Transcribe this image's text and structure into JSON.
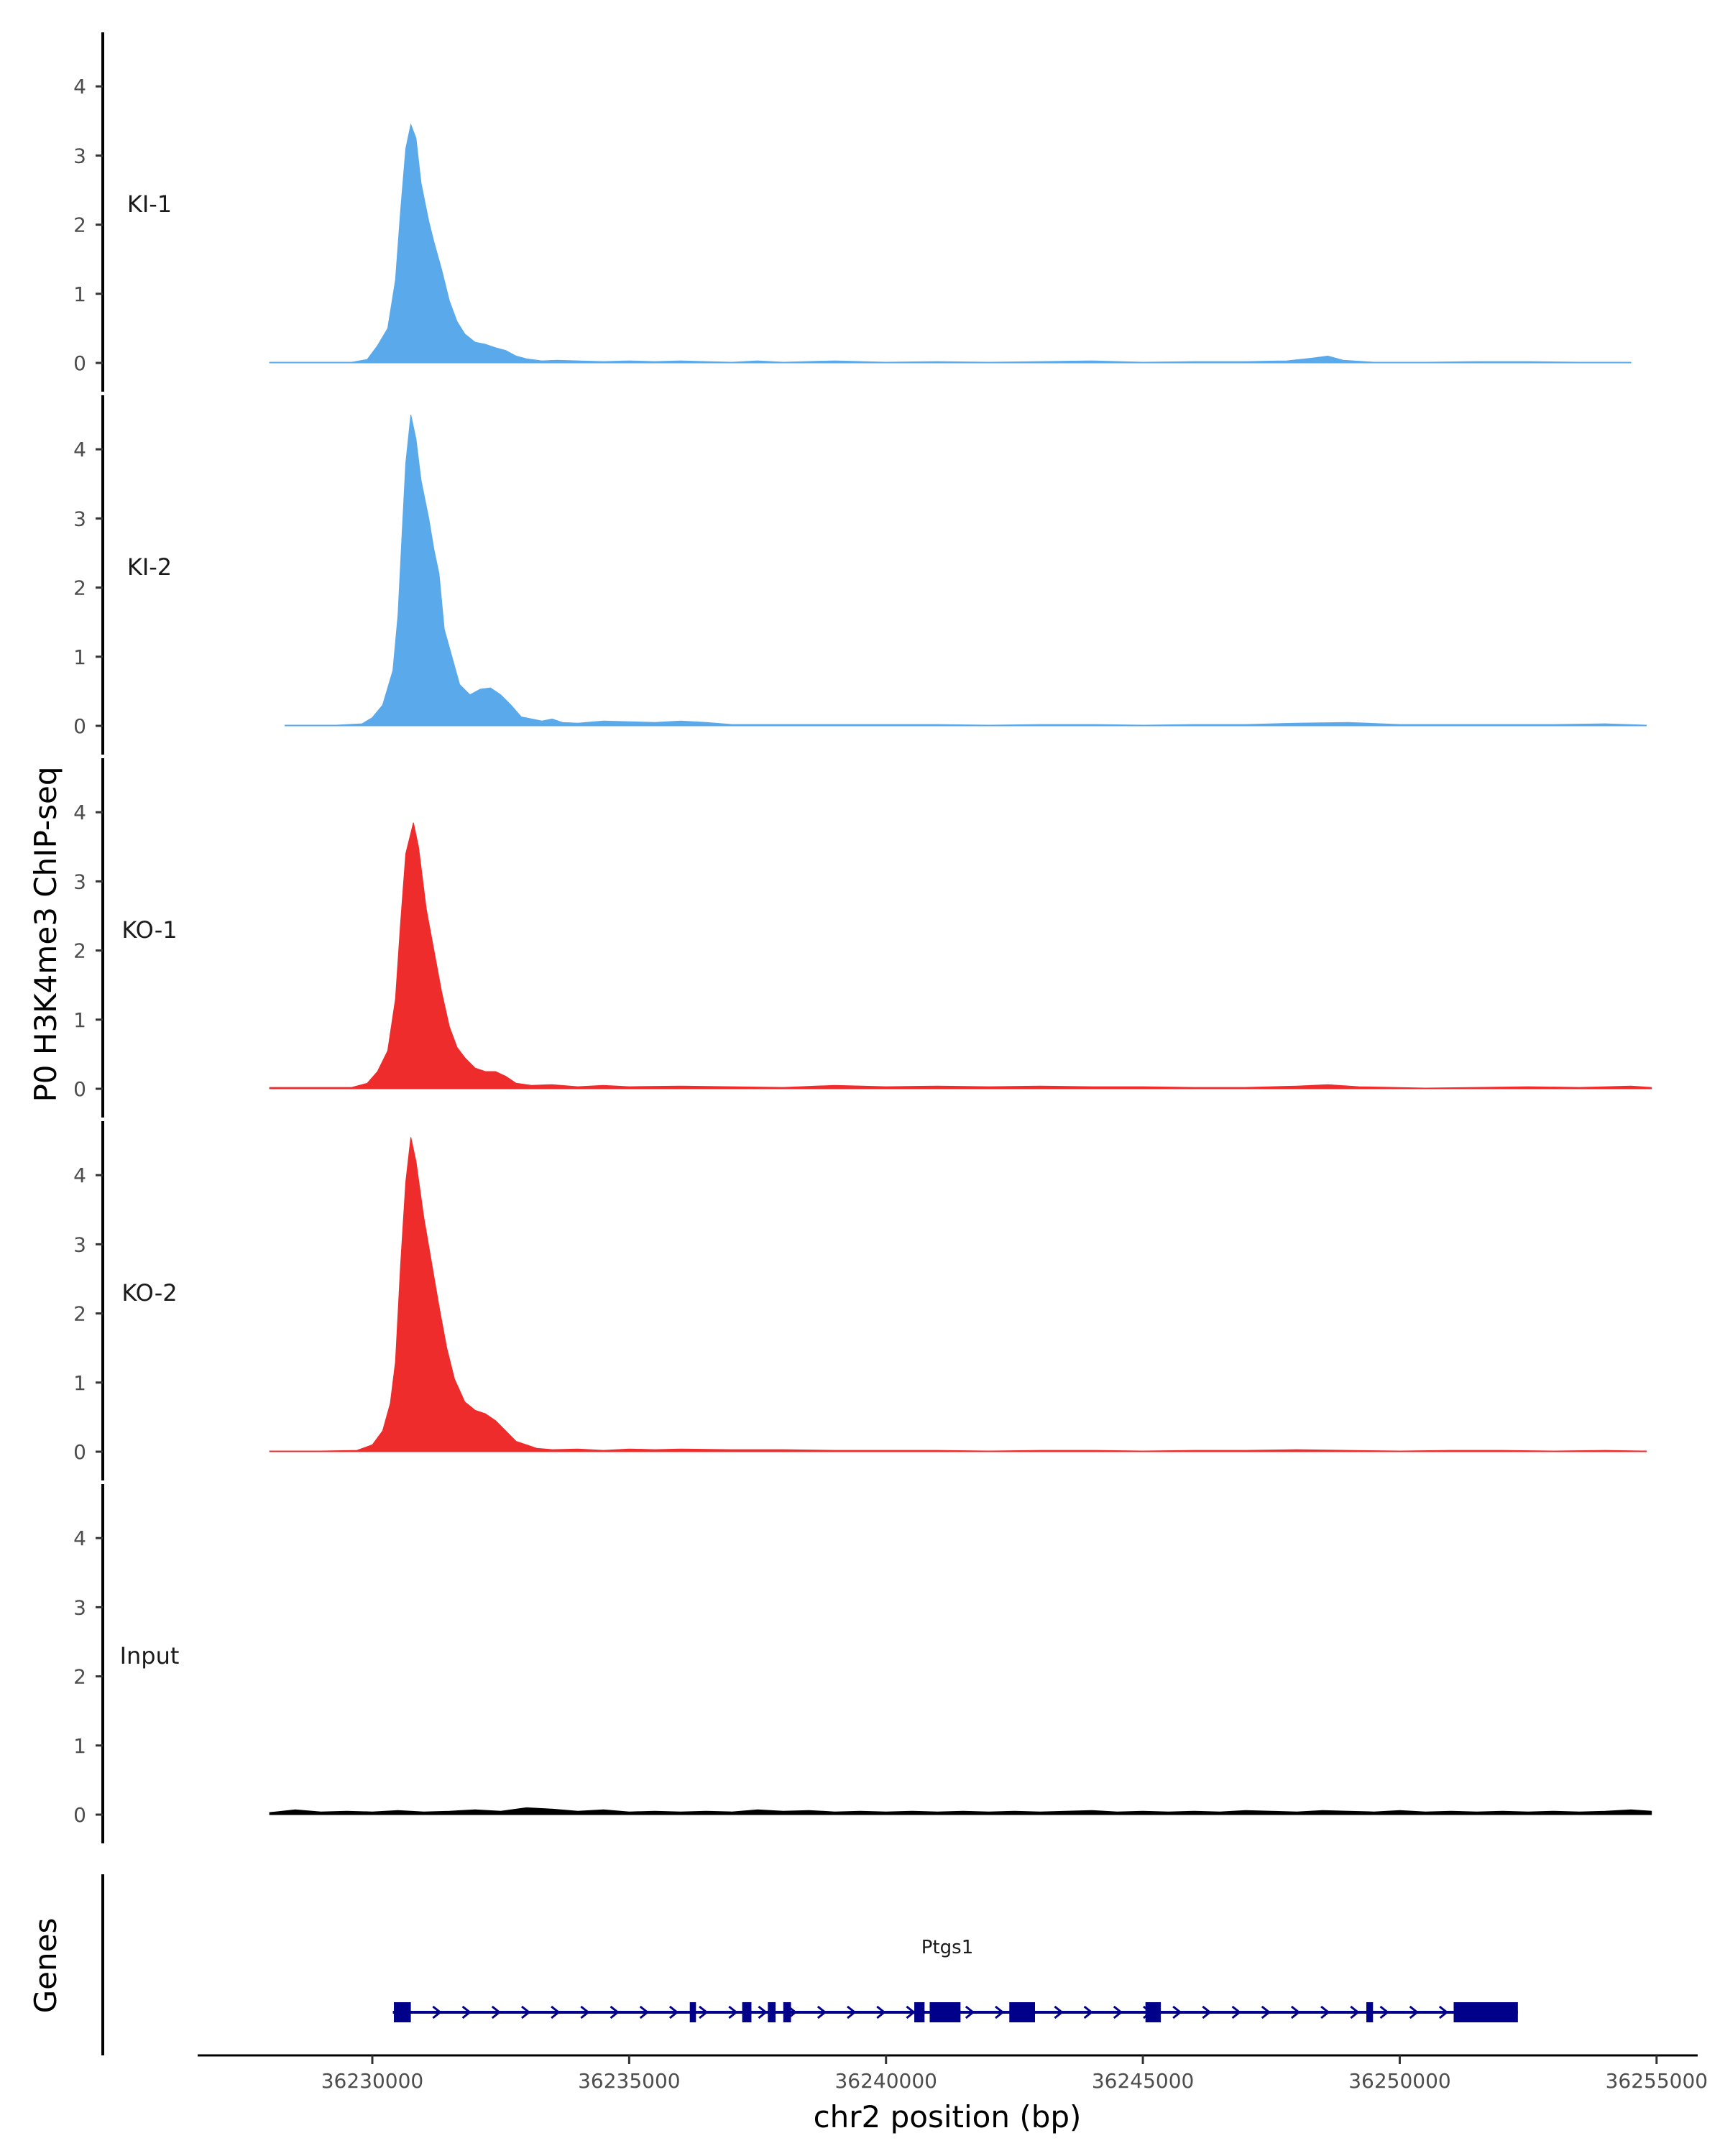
{
  "chart_data": {
    "type": "area",
    "ylabel": "P0 H3K4me3 ChIP-seq",
    "xlabel": "chr2 position (bp)",
    "xlim": [
      36226600,
      36255800
    ],
    "ylim": [
      0,
      4.75
    ],
    "yticks": [
      "0",
      "1",
      "2",
      "3",
      "4"
    ],
    "xticks": [
      {
        "value": 36230000,
        "label": "36230000"
      },
      {
        "value": 36235000,
        "label": "36235000"
      },
      {
        "value": 36240000,
        "label": "36240000"
      },
      {
        "value": 36245000,
        "label": "36245000"
      },
      {
        "value": 36250000,
        "label": "36250000"
      },
      {
        "value": 36255000,
        "label": "36255000"
      }
    ],
    "series": [
      {
        "name": "KI-1",
        "color": "#5AAAEB",
        "points": [
          [
            36228000,
            0.01
          ],
          [
            36229000,
            0.01
          ],
          [
            36229600,
            0.01
          ],
          [
            36229900,
            0.05
          ],
          [
            36230100,
            0.25
          ],
          [
            36230300,
            0.5
          ],
          [
            36230450,
            1.2
          ],
          [
            36230550,
            2.2
          ],
          [
            36230650,
            3.1
          ],
          [
            36230750,
            3.45
          ],
          [
            36230850,
            3.25
          ],
          [
            36230950,
            2.6
          ],
          [
            36231100,
            2.05
          ],
          [
            36231200,
            1.75
          ],
          [
            36231350,
            1.35
          ],
          [
            36231500,
            0.9
          ],
          [
            36231650,
            0.6
          ],
          [
            36231800,
            0.42
          ],
          [
            36232000,
            0.3
          ],
          [
            36232200,
            0.27
          ],
          [
            36232400,
            0.22
          ],
          [
            36232600,
            0.18
          ],
          [
            36232800,
            0.1
          ],
          [
            36233000,
            0.06
          ],
          [
            36233300,
            0.03
          ],
          [
            36233600,
            0.04
          ],
          [
            36234000,
            0.03
          ],
          [
            36234500,
            0.02
          ],
          [
            36235000,
            0.03
          ],
          [
            36235500,
            0.02
          ],
          [
            36236000,
            0.03
          ],
          [
            36236500,
            0.02
          ],
          [
            36237000,
            0.01
          ],
          [
            36237500,
            0.03
          ],
          [
            36238000,
            0.01
          ],
          [
            36239000,
            0.03
          ],
          [
            36240000,
            0.01
          ],
          [
            36241000,
            0.02
          ],
          [
            36242000,
            0.01
          ],
          [
            36243000,
            0.02
          ],
          [
            36244000,
            0.03
          ],
          [
            36245000,
            0.01
          ],
          [
            36246000,
            0.02
          ],
          [
            36247000,
            0.02
          ],
          [
            36247800,
            0.03
          ],
          [
            36248300,
            0.07
          ],
          [
            36248600,
            0.1
          ],
          [
            36248900,
            0.04
          ],
          [
            36249500,
            0.01
          ],
          [
            36250500,
            0.01
          ],
          [
            36251500,
            0.02
          ],
          [
            36252500,
            0.02
          ],
          [
            36253500,
            0.01
          ],
          [
            36254500,
            0.01
          ]
        ]
      },
      {
        "name": "KI-2",
        "color": "#5AAAEB",
        "points": [
          [
            36228300,
            0.01
          ],
          [
            36229300,
            0.01
          ],
          [
            36229800,
            0.03
          ],
          [
            36230000,
            0.12
          ],
          [
            36230200,
            0.3
          ],
          [
            36230400,
            0.8
          ],
          [
            36230500,
            1.6
          ],
          [
            36230580,
            2.8
          ],
          [
            36230650,
            3.8
          ],
          [
            36230750,
            4.5
          ],
          [
            36230850,
            4.15
          ],
          [
            36230950,
            3.55
          ],
          [
            36231100,
            3.0
          ],
          [
            36231200,
            2.55
          ],
          [
            36231300,
            2.2
          ],
          [
            36231400,
            1.4
          ],
          [
            36231550,
            1.0
          ],
          [
            36231700,
            0.6
          ],
          [
            36231900,
            0.45
          ],
          [
            36232100,
            0.53
          ],
          [
            36232300,
            0.55
          ],
          [
            36232500,
            0.45
          ],
          [
            36232700,
            0.3
          ],
          [
            36232900,
            0.13
          ],
          [
            36233100,
            0.1
          ],
          [
            36233300,
            0.07
          ],
          [
            36233500,
            0.1
          ],
          [
            36233700,
            0.05
          ],
          [
            36234000,
            0.04
          ],
          [
            36234500,
            0.07
          ],
          [
            36235000,
            0.06
          ],
          [
            36235500,
            0.05
          ],
          [
            36236000,
            0.07
          ],
          [
            36236500,
            0.05
          ],
          [
            36237000,
            0.02
          ],
          [
            36238000,
            0.02
          ],
          [
            36239000,
            0.02
          ],
          [
            36240000,
            0.02
          ],
          [
            36241000,
            0.02
          ],
          [
            36242000,
            0.01
          ],
          [
            36243000,
            0.02
          ],
          [
            36244000,
            0.02
          ],
          [
            36245000,
            0.01
          ],
          [
            36246000,
            0.02
          ],
          [
            36247000,
            0.02
          ],
          [
            36248000,
            0.04
          ],
          [
            36249000,
            0.05
          ],
          [
            36250000,
            0.02
          ],
          [
            36251000,
            0.02
          ],
          [
            36252000,
            0.02
          ],
          [
            36253000,
            0.02
          ],
          [
            36254000,
            0.03
          ],
          [
            36254800,
            0.01
          ]
        ]
      },
      {
        "name": "KO-1",
        "color": "#EE2C2C",
        "points": [
          [
            36228000,
            0.02
          ],
          [
            36229000,
            0.02
          ],
          [
            36229600,
            0.02
          ],
          [
            36229900,
            0.08
          ],
          [
            36230100,
            0.25
          ],
          [
            36230300,
            0.55
          ],
          [
            36230450,
            1.3
          ],
          [
            36230550,
            2.4
          ],
          [
            36230650,
            3.4
          ],
          [
            36230800,
            3.85
          ],
          [
            36230900,
            3.5
          ],
          [
            36231050,
            2.6
          ],
          [
            36231200,
            2.0
          ],
          [
            36231350,
            1.4
          ],
          [
            36231500,
            0.9
          ],
          [
            36231650,
            0.6
          ],
          [
            36231800,
            0.45
          ],
          [
            36232000,
            0.3
          ],
          [
            36232200,
            0.25
          ],
          [
            36232400,
            0.25
          ],
          [
            36232600,
            0.18
          ],
          [
            36232800,
            0.08
          ],
          [
            36233100,
            0.05
          ],
          [
            36233500,
            0.06
          ],
          [
            36234000,
            0.03
          ],
          [
            36234500,
            0.05
          ],
          [
            36235000,
            0.03
          ],
          [
            36236000,
            0.04
          ],
          [
            36237000,
            0.03
          ],
          [
            36238000,
            0.02
          ],
          [
            36239000,
            0.05
          ],
          [
            36240000,
            0.03
          ],
          [
            36241000,
            0.04
          ],
          [
            36242000,
            0.03
          ],
          [
            36243000,
            0.04
          ],
          [
            36244000,
            0.03
          ],
          [
            36245000,
            0.03
          ],
          [
            36246000,
            0.02
          ],
          [
            36247000,
            0.02
          ],
          [
            36248000,
            0.04
          ],
          [
            36248600,
            0.06
          ],
          [
            36249200,
            0.03
          ],
          [
            36250500,
            0.01
          ],
          [
            36251500,
            0.02
          ],
          [
            36252500,
            0.03
          ],
          [
            36253500,
            0.02
          ],
          [
            36254500,
            0.04
          ],
          [
            36254900,
            0.02
          ]
        ]
      },
      {
        "name": "KO-2",
        "color": "#EE2C2C",
        "points": [
          [
            36228000,
            0.01
          ],
          [
            36229000,
            0.01
          ],
          [
            36229700,
            0.02
          ],
          [
            36230000,
            0.1
          ],
          [
            36230200,
            0.3
          ],
          [
            36230350,
            0.7
          ],
          [
            36230450,
            1.3
          ],
          [
            36230550,
            2.7
          ],
          [
            36230650,
            3.9
          ],
          [
            36230750,
            4.55
          ],
          [
            36230850,
            4.2
          ],
          [
            36231000,
            3.4
          ],
          [
            36231150,
            2.75
          ],
          [
            36231300,
            2.1
          ],
          [
            36231450,
            1.5
          ],
          [
            36231600,
            1.05
          ],
          [
            36231800,
            0.72
          ],
          [
            36232000,
            0.6
          ],
          [
            36232200,
            0.55
          ],
          [
            36232400,
            0.45
          ],
          [
            36232600,
            0.3
          ],
          [
            36232800,
            0.15
          ],
          [
            36233000,
            0.1
          ],
          [
            36233200,
            0.05
          ],
          [
            36233500,
            0.03
          ],
          [
            36234000,
            0.04
          ],
          [
            36234500,
            0.02
          ],
          [
            36235000,
            0.04
          ],
          [
            36235500,
            0.03
          ],
          [
            36236000,
            0.04
          ],
          [
            36237000,
            0.03
          ],
          [
            36238000,
            0.03
          ],
          [
            36239000,
            0.02
          ],
          [
            36240000,
            0.02
          ],
          [
            36241000,
            0.02
          ],
          [
            36242000,
            0.01
          ],
          [
            36243000,
            0.02
          ],
          [
            36244000,
            0.02
          ],
          [
            36245000,
            0.01
          ],
          [
            36246000,
            0.02
          ],
          [
            36247000,
            0.02
          ],
          [
            36248000,
            0.03
          ],
          [
            36249000,
            0.02
          ],
          [
            36250000,
            0.01
          ],
          [
            36251000,
            0.02
          ],
          [
            36252000,
            0.02
          ],
          [
            36253000,
            0.01
          ],
          [
            36254000,
            0.02
          ],
          [
            36254800,
            0.01
          ]
        ]
      },
      {
        "name": "Input",
        "color": "#000000",
        "points": [
          [
            36228000,
            0.03
          ],
          [
            36228500,
            0.07
          ],
          [
            36229000,
            0.04
          ],
          [
            36229500,
            0.05
          ],
          [
            36230000,
            0.04
          ],
          [
            36230500,
            0.06
          ],
          [
            36231000,
            0.04
          ],
          [
            36231500,
            0.05
          ],
          [
            36232000,
            0.07
          ],
          [
            36232500,
            0.05
          ],
          [
            36233000,
            0.1
          ],
          [
            36233500,
            0.08
          ],
          [
            36234000,
            0.05
          ],
          [
            36234500,
            0.07
          ],
          [
            36235000,
            0.04
          ],
          [
            36235500,
            0.05
          ],
          [
            36236000,
            0.04
          ],
          [
            36236500,
            0.05
          ],
          [
            36237000,
            0.04
          ],
          [
            36237500,
            0.07
          ],
          [
            36238000,
            0.05
          ],
          [
            36238500,
            0.06
          ],
          [
            36239000,
            0.04
          ],
          [
            36239500,
            0.05
          ],
          [
            36240000,
            0.04
          ],
          [
            36240500,
            0.05
          ],
          [
            36241000,
            0.04
          ],
          [
            36241500,
            0.05
          ],
          [
            36242000,
            0.04
          ],
          [
            36242500,
            0.05
          ],
          [
            36243000,
            0.04
          ],
          [
            36243500,
            0.05
          ],
          [
            36244000,
            0.06
          ],
          [
            36244500,
            0.04
          ],
          [
            36245000,
            0.05
          ],
          [
            36245500,
            0.04
          ],
          [
            36246000,
            0.05
          ],
          [
            36246500,
            0.04
          ],
          [
            36247000,
            0.06
          ],
          [
            36247500,
            0.05
          ],
          [
            36248000,
            0.04
          ],
          [
            36248500,
            0.06
          ],
          [
            36249000,
            0.05
          ],
          [
            36249500,
            0.04
          ],
          [
            36250000,
            0.06
          ],
          [
            36250500,
            0.04
          ],
          [
            36251000,
            0.05
          ],
          [
            36251500,
            0.04
          ],
          [
            36252000,
            0.05
          ],
          [
            36252500,
            0.04
          ],
          [
            36253000,
            0.05
          ],
          [
            36253500,
            0.04
          ],
          [
            36254000,
            0.05
          ],
          [
            36254500,
            0.07
          ],
          [
            36254900,
            0.05
          ]
        ]
      }
    ],
    "genes_track": {
      "label": "Genes",
      "gene_name": "Ptgs1",
      "color": "#00008B",
      "start": 36230400,
      "end": 36252300,
      "strand": "+",
      "exons": [
        [
          36230420,
          36230750
        ],
        [
          36236180,
          36236300
        ],
        [
          36237200,
          36237380
        ],
        [
          36237700,
          36237850
        ],
        [
          36238000,
          36238150
        ],
        [
          36240550,
          36240750
        ],
        [
          36240850,
          36241450
        ],
        [
          36242400,
          36242900
        ],
        [
          36245050,
          36245350
        ],
        [
          36249350,
          36249480
        ],
        [
          36251050,
          36252300
        ]
      ]
    }
  }
}
